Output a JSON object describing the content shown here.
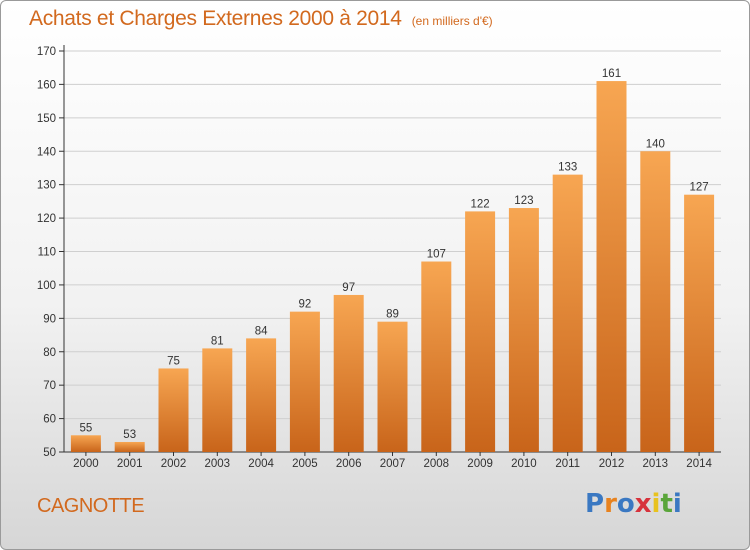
{
  "title": "Achats et Charges Externes 2000 à 2014",
  "unit": "(en milliers d'€)",
  "commune": "CAGNOTTE",
  "logo": "Proxiti",
  "logo_colors": [
    "#3a78c2",
    "#e8821e",
    "#3a78c2",
    "#d7323c",
    "#e8c21e",
    "#5aa53a",
    "#3a78c2"
  ],
  "colors": {
    "bar_light": "#f7a652",
    "bar_dark": "#c8641a",
    "text": "#d2691e",
    "axis": "#333333",
    "grid": "#cfcfcf"
  },
  "chart_data": {
    "type": "bar",
    "categories": [
      "2000",
      "2001",
      "2002",
      "2003",
      "2004",
      "2005",
      "2006",
      "2007",
      "2008",
      "2009",
      "2010",
      "2011",
      "2012",
      "2013",
      "2014"
    ],
    "values": [
      55,
      53,
      75,
      81,
      84,
      92,
      97,
      89,
      107,
      122,
      123,
      133,
      161,
      140,
      127
    ],
    "yticks": [
      50,
      60,
      70,
      80,
      90,
      100,
      110,
      120,
      130,
      140,
      150,
      160,
      170
    ],
    "ylim": [
      50,
      170
    ],
    "grid": true
  }
}
